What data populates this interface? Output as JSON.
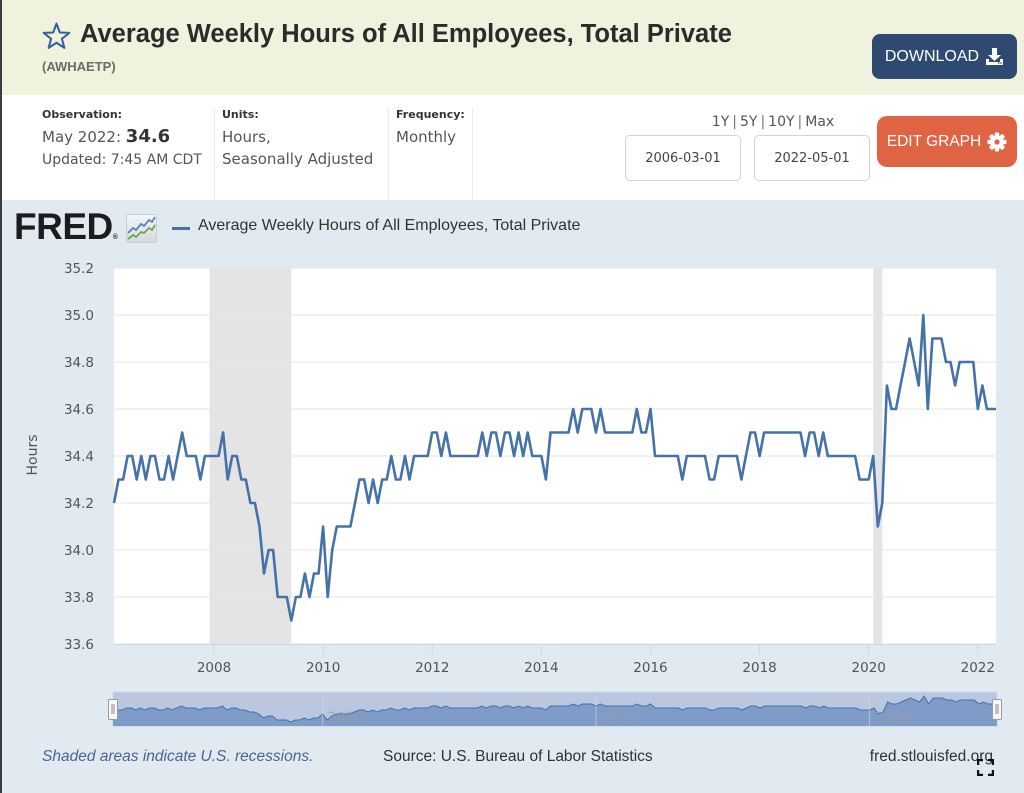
{
  "header": {
    "title": "Average Weekly Hours of All Employees, Total Private",
    "series_id": "(AWHAETP)",
    "star_icon": "star-outline-icon",
    "download_label": "DOWNLOAD",
    "download_icon": "download-icon"
  },
  "info": {
    "observation": {
      "label": "Observation:",
      "date": "May 2022:",
      "value": "34.6",
      "updated": "Updated: 7:45 AM CDT"
    },
    "units": {
      "label": "Units:",
      "line1": "Hours,",
      "line2": "Seasonally Adjusted"
    },
    "frequency": {
      "label": "Frequency:",
      "value": "Monthly"
    }
  },
  "range": {
    "presets": [
      "1Y",
      "5Y",
      "10Y",
      "Max"
    ],
    "separator": "|",
    "start": "2006-03-01",
    "end": "2022-05-01"
  },
  "edit_graph": {
    "label": "EDIT GRAPH",
    "icon": "gear-icon"
  },
  "logo": {
    "text": "FRED",
    "registered": "®"
  },
  "navigator": {
    "labels": [
      "2010",
      "2015",
      "2020"
    ]
  },
  "footer": {
    "note": "Shaded areas indicate U.S. recessions.",
    "source": "Source: U.S. Bureau of Labor Statistics",
    "site": "fred.stlouisfed.org",
    "fullscreen_icon": "fullscreen-icon"
  },
  "colors": {
    "series": "#4572a7",
    "download_button": "#2e4a70",
    "edit_button": "#df6444",
    "header_bg": "#f0f2dd",
    "panel_bg": "#e1e9f1",
    "recession": "#e4e4e4"
  },
  "chart_data": {
    "type": "line",
    "xlabel": "",
    "ylabel": "Hours",
    "start": "2006-03",
    "end": "2022-05",
    "ylim": [
      33.6,
      35.2
    ],
    "y_ticks": [
      "33.6",
      "33.8",
      "34.0",
      "34.2",
      "34.4",
      "34.6",
      "34.8",
      "35.0",
      "35.2"
    ],
    "x_ticks": [
      "2008",
      "2010",
      "2012",
      "2014",
      "2016",
      "2018",
      "2020",
      "2022"
    ],
    "grid": true,
    "legend_placement": "top-left",
    "recessions": [
      {
        "start": "2007-12",
        "end": "2009-06"
      },
      {
        "start": "2020-02",
        "end": "2020-04"
      }
    ],
    "series": [
      {
        "name": "Average Weekly Hours of All Employees, Total Private",
        "values": [
          34.2,
          34.3,
          34.3,
          34.4,
          34.4,
          34.3,
          34.4,
          34.3,
          34.4,
          34.4,
          34.3,
          34.3,
          34.4,
          34.3,
          34.4,
          34.5,
          34.4,
          34.4,
          34.4,
          34.3,
          34.4,
          34.4,
          34.4,
          34.4,
          34.5,
          34.3,
          34.4,
          34.4,
          34.3,
          34.3,
          34.2,
          34.2,
          34.1,
          33.9,
          34.0,
          34.0,
          33.8,
          33.8,
          33.8,
          33.7,
          33.8,
          33.8,
          33.9,
          33.8,
          33.9,
          33.9,
          34.1,
          33.8,
          34.0,
          34.1,
          34.1,
          34.1,
          34.1,
          34.2,
          34.3,
          34.3,
          34.2,
          34.3,
          34.2,
          34.3,
          34.3,
          34.4,
          34.3,
          34.3,
          34.4,
          34.3,
          34.4,
          34.4,
          34.4,
          34.4,
          34.5,
          34.5,
          34.4,
          34.5,
          34.4,
          34.4,
          34.4,
          34.4,
          34.4,
          34.4,
          34.4,
          34.5,
          34.4,
          34.5,
          34.5,
          34.4,
          34.5,
          34.5,
          34.4,
          34.5,
          34.4,
          34.5,
          34.4,
          34.4,
          34.4,
          34.3,
          34.5,
          34.5,
          34.5,
          34.5,
          34.5,
          34.6,
          34.5,
          34.6,
          34.6,
          34.6,
          34.5,
          34.6,
          34.5,
          34.5,
          34.5,
          34.5,
          34.5,
          34.5,
          34.5,
          34.6,
          34.5,
          34.5,
          34.6,
          34.4,
          34.4,
          34.4,
          34.4,
          34.4,
          34.4,
          34.3,
          34.4,
          34.4,
          34.4,
          34.4,
          34.4,
          34.3,
          34.3,
          34.4,
          34.4,
          34.4,
          34.4,
          34.4,
          34.3,
          34.4,
          34.5,
          34.5,
          34.4,
          34.5,
          34.5,
          34.5,
          34.5,
          34.5,
          34.5,
          34.5,
          34.5,
          34.5,
          34.4,
          34.5,
          34.5,
          34.4,
          34.5,
          34.4,
          34.4,
          34.4,
          34.4,
          34.4,
          34.4,
          34.4,
          34.3,
          34.3,
          34.3,
          34.4,
          34.1,
          34.2,
          34.7,
          34.6,
          34.6,
          34.7,
          34.8,
          34.9,
          34.8,
          34.7,
          35.0,
          34.6,
          34.9,
          34.9,
          34.9,
          34.8,
          34.8,
          34.7,
          34.8,
          34.8,
          34.8,
          34.8,
          34.6,
          34.7,
          34.6,
          34.6,
          34.6
        ]
      }
    ]
  }
}
